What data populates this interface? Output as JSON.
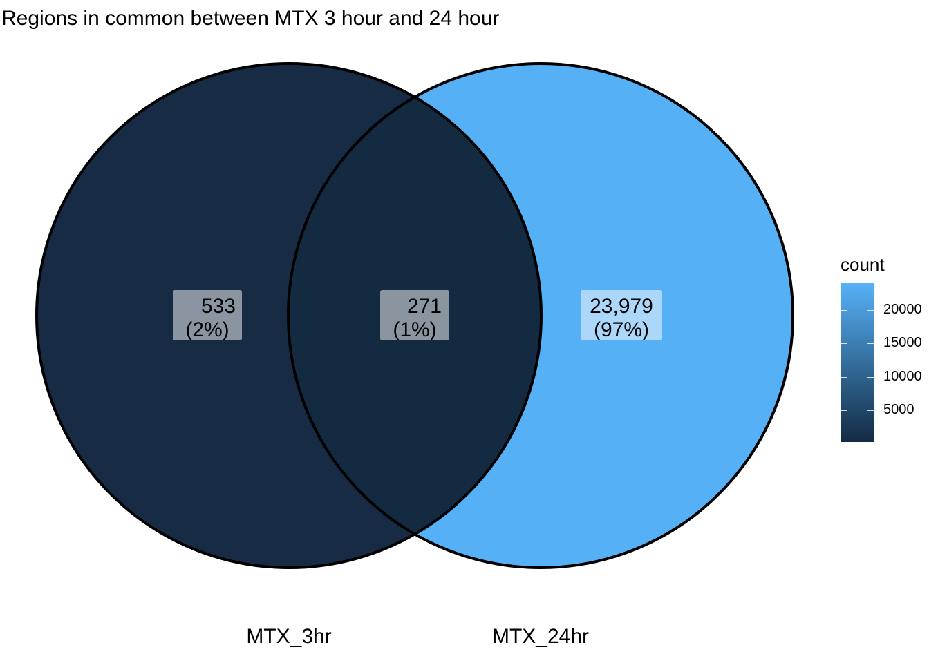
{
  "title": "Regions in common between MTX 3 hour and 24 hour",
  "sets": [
    {
      "name": "MTX_3hr",
      "fill": "#172B44"
    },
    {
      "name": "MTX_24hr",
      "fill": "#56B0F5"
    }
  ],
  "regions": [
    {
      "key": "only_3hr",
      "count": "533",
      "percent": "(2%)",
      "fill": "#172B44"
    },
    {
      "key": "both",
      "count": "271",
      "percent": "(1%)",
      "fill": "#142A41"
    },
    {
      "key": "only_24hr",
      "count": "23,979",
      "percent": "(97%)",
      "fill": "#56B0F5"
    }
  ],
  "legend": {
    "title": "count",
    "gradient_low": "#132B43",
    "gradient_high": "#56B1F7",
    "range": [
      271,
      23979
    ],
    "ticks": [
      {
        "value": 5000,
        "label": "5000"
      },
      {
        "value": 10000,
        "label": "10000"
      },
      {
        "value": 15000,
        "label": "15000"
      },
      {
        "value": 20000,
        "label": "20000"
      }
    ]
  },
  "chart_data": {
    "type": "venn",
    "title": "Regions in common between MTX 3 hour and 24 hour",
    "sets": [
      "MTX_3hr",
      "MTX_24hr"
    ],
    "values": {
      "MTX_3hr_only": 533,
      "intersection": 271,
      "MTX_24hr_only": 23979
    },
    "percentages": {
      "MTX_3hr_only": 2,
      "intersection": 1,
      "MTX_24hr_only": 97
    },
    "legend": {
      "title": "count",
      "placement": "right"
    }
  }
}
